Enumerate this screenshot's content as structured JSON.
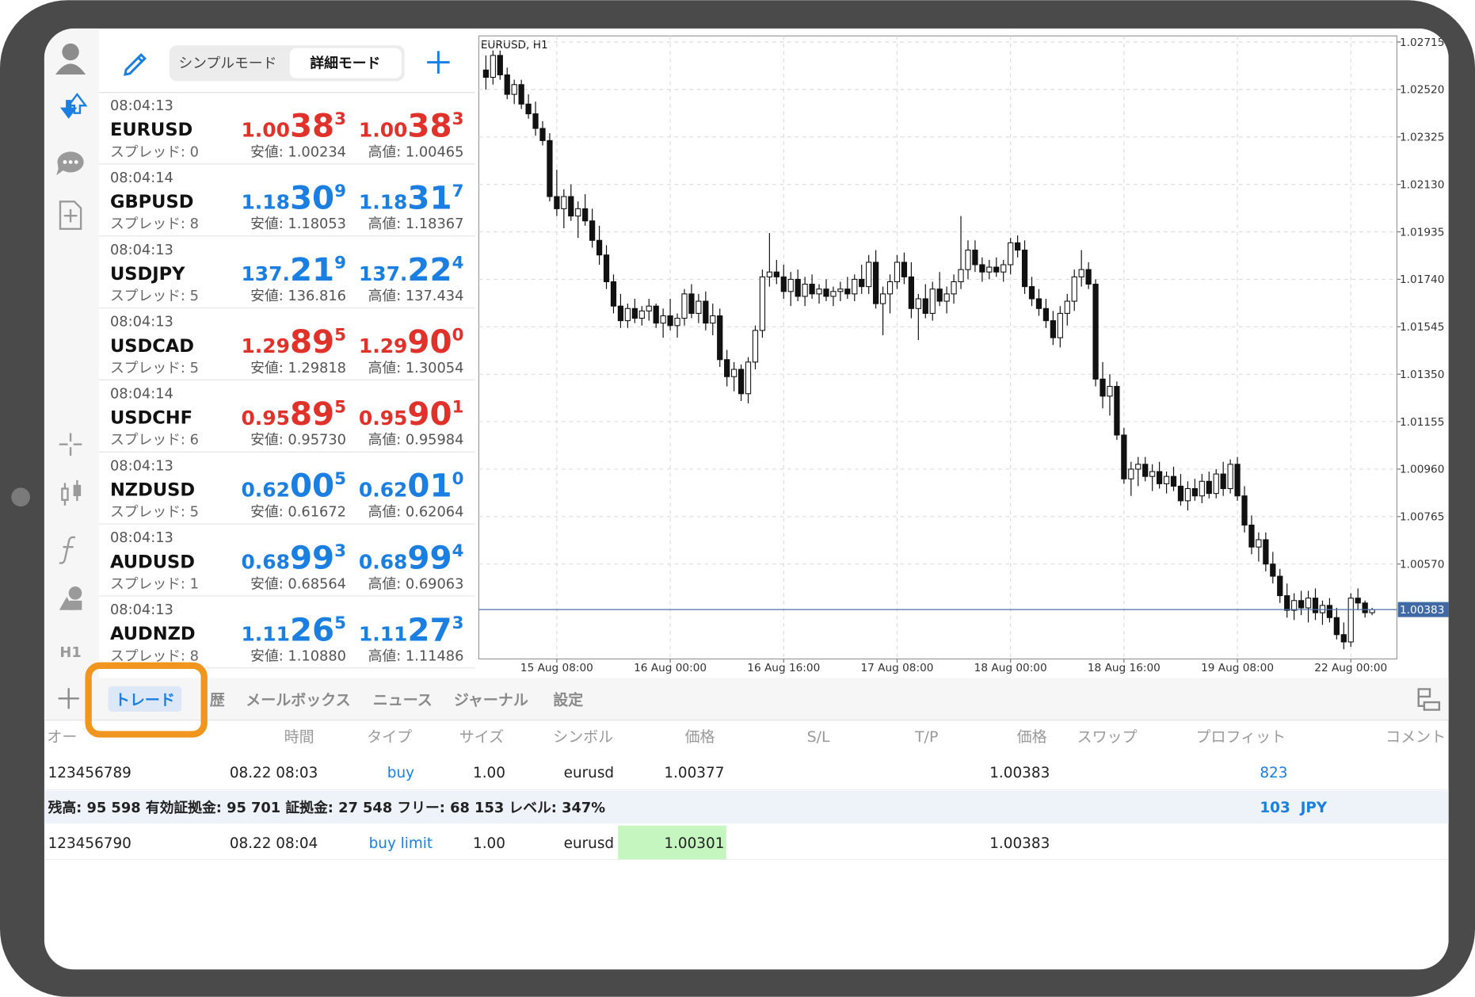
{
  "sidebar": {
    "timeframe": "H1"
  },
  "toolbar": {
    "modes": [
      "シンプルモード",
      "詳細モード"
    ]
  },
  "quotes": [
    {
      "time": "08:04:13",
      "symbol": "EURUSD",
      "spread": "スプレッド: 0",
      "bid": [
        "1.00",
        "38",
        "3"
      ],
      "ask": [
        "1.00",
        "38",
        "3"
      ],
      "low": "安値: 1.00234",
      "high": "高値: 1.00465",
      "color": "#e0322b"
    },
    {
      "time": "08:04:14",
      "symbol": "GBPUSD",
      "spread": "スプレッド: 8",
      "bid": [
        "1.18",
        "30",
        "9"
      ],
      "ask": [
        "1.18",
        "31",
        "7"
      ],
      "low": "安値: 1.18053",
      "high": "高値: 1.18367",
      "color": "#1a7fe0"
    },
    {
      "time": "08:04:13",
      "symbol": "USDJPY",
      "spread": "スプレッド: 5",
      "bid": [
        "137.",
        "21",
        "9"
      ],
      "ask": [
        "137.",
        "22",
        "4"
      ],
      "low": "安値: 136.816",
      "high": "高値: 137.434",
      "color": "#1a7fe0"
    },
    {
      "time": "08:04:13",
      "symbol": "USDCAD",
      "spread": "スプレッド: 5",
      "bid": [
        "1.29",
        "89",
        "5"
      ],
      "ask": [
        "1.29",
        "90",
        "0"
      ],
      "low": "安値: 1.29818",
      "high": "高値: 1.30054",
      "color": "#e0322b"
    },
    {
      "time": "08:04:14",
      "symbol": "USDCHF",
      "spread": "スプレッド: 6",
      "bid": [
        "0.95",
        "89",
        "5"
      ],
      "ask": [
        "0.95",
        "90",
        "1"
      ],
      "low": "安値: 0.95730",
      "high": "高値: 0.95984",
      "color": "#e0322b"
    },
    {
      "time": "08:04:13",
      "symbol": "NZDUSD",
      "spread": "スプレッド: 5",
      "bid": [
        "0.62",
        "00",
        "5"
      ],
      "ask": [
        "0.62",
        "01",
        "0"
      ],
      "low": "安値: 0.61672",
      "high": "高値: 0.62064",
      "color": "#1a7fe0"
    },
    {
      "time": "08:04:13",
      "symbol": "AUDUSD",
      "spread": "スプレッド: 1",
      "bid": [
        "0.68",
        "99",
        "3"
      ],
      "ask": [
        "0.68",
        "99",
        "4"
      ],
      "low": "安値: 0.68564",
      "high": "高値: 0.69063",
      "color": "#1a7fe0"
    },
    {
      "time": "08:04:13",
      "symbol": "AUDNZD",
      "spread": "スプレッド: 8",
      "bid": [
        "1.11",
        "26",
        "5"
      ],
      "ask": [
        "1.11",
        "27",
        "3"
      ],
      "low": "安値: 1.10880",
      "high": "高値: 1.11486",
      "color": "#1a7fe0"
    }
  ],
  "chart_data": {
    "type": "candlestick",
    "title": "EURUSD, H1",
    "xlim": [
      -1,
      128.5
    ],
    "ylim": [
      1.0018,
      1.0274
    ],
    "yticks": [
      1.02715,
      {
        "value": 1.0252,
        "label": "1.02520"
      },
      1.02325,
      {
        "value": 1.0213,
        "label": "1.02130"
      },
      1.01935,
      {
        "value": 1.0174,
        "label": "1.01740"
      },
      1.01545,
      {
        "value": 1.0135,
        "label": "1.01350"
      },
      1.01155,
      {
        "value": 1.0096,
        "label": "1.00960"
      },
      1.00765,
      {
        "value": 1.0057,
        "label": "1.00570"
      }
    ],
    "xticks": [
      {
        "value": 10,
        "label": "15 Aug 08:00"
      },
      {
        "value": 26,
        "label": "16 Aug 00:00"
      },
      {
        "value": 42,
        "label": "16 Aug 16:00"
      },
      {
        "value": 58,
        "label": "17 Aug 08:00"
      },
      {
        "value": 74,
        "label": "18 Aug 00:00"
      },
      {
        "value": 90,
        "label": "18 Aug 16:00"
      },
      {
        "value": 106,
        "label": "19 Aug 08:00"
      },
      {
        "value": 122,
        "label": "22 Aug 00:00"
      }
    ],
    "grid": true,
    "current_price": 1.00383,
    "ohlc": [
      [
        1.026,
        1.0266,
        1.0252,
        1.0257
      ],
      [
        1.0257,
        1.0268,
        1.0254,
        1.0266
      ],
      [
        1.0266,
        1.0268,
        1.0256,
        1.0258
      ],
      [
        1.0258,
        1.0261,
        1.0248,
        1.025
      ],
      [
        1.025,
        1.0256,
        1.0246,
        1.0254
      ],
      [
        1.0254,
        1.0256,
        1.0244,
        1.0246
      ],
      [
        1.0246,
        1.025,
        1.024,
        1.0242
      ],
      [
        1.0242,
        1.0247,
        1.0233,
        1.0236
      ],
      [
        1.0236,
        1.0239,
        1.0229,
        1.0231
      ],
      [
        1.0231,
        1.0234,
        1.0206,
        1.0208
      ],
      [
        1.0208,
        1.0219,
        1.02,
        1.0203
      ],
      [
        1.0203,
        1.0211,
        1.0195,
        1.0208
      ],
      [
        1.0208,
        1.0213,
        1.0198,
        1.02
      ],
      [
        1.02,
        1.0206,
        1.0191,
        1.0203
      ],
      [
        1.0203,
        1.0209,
        1.0196,
        1.0198
      ],
      [
        1.0198,
        1.0203,
        1.0187,
        1.019
      ],
      [
        1.019,
        1.0196,
        1.018,
        1.0184
      ],
      [
        1.0184,
        1.0188,
        1.017,
        1.0173
      ],
      [
        1.0173,
        1.0176,
        1.016,
        1.0163
      ],
      [
        1.0163,
        1.0168,
        1.0154,
        1.0157
      ],
      [
        1.0157,
        1.0164,
        1.0154,
        1.0162
      ],
      [
        1.0162,
        1.0166,
        1.0156,
        1.0158
      ],
      [
        1.0158,
        1.0163,
        1.0155,
        1.0161
      ],
      [
        1.0161,
        1.0166,
        1.0157,
        1.0163
      ],
      [
        1.0163,
        1.0164,
        1.0154,
        1.0156
      ],
      [
        1.0156,
        1.0162,
        1.015,
        1.0159
      ],
      [
        1.0159,
        1.0166,
        1.0153,
        1.0155
      ],
      [
        1.0155,
        1.016,
        1.015,
        1.0158
      ],
      [
        1.0158,
        1.017,
        1.0155,
        1.0168
      ],
      [
        1.0168,
        1.0172,
        1.0158,
        1.016
      ],
      [
        1.016,
        1.0168,
        1.0156,
        1.0165
      ],
      [
        1.0165,
        1.0169,
        1.0153,
        1.0156
      ],
      [
        1.0156,
        1.0164,
        1.0151,
        1.0159
      ],
      [
        1.0159,
        1.0162,
        1.0138,
        1.0141
      ],
      [
        1.0141,
        1.0145,
        1.013,
        1.0134
      ],
      [
        1.0134,
        1.014,
        1.0128,
        1.0137
      ],
      [
        1.0137,
        1.0139,
        1.0124,
        1.0127
      ],
      [
        1.0127,
        1.0142,
        1.0123,
        1.014
      ],
      [
        1.014,
        1.0155,
        1.0137,
        1.0153
      ],
      [
        1.0153,
        1.0178,
        1.015,
        1.0175
      ],
      [
        1.0175,
        1.0193,
        1.0171,
        1.0177
      ],
      [
        1.0177,
        1.0182,
        1.0172,
        1.0175
      ],
      [
        1.0175,
        1.018,
        1.0166,
        1.0169
      ],
      [
        1.0169,
        1.0177,
        1.0163,
        1.0174
      ],
      [
        1.0174,
        1.0178,
        1.0165,
        1.0167
      ],
      [
        1.0167,
        1.0175,
        1.0163,
        1.0172
      ],
      [
        1.0172,
        1.0176,
        1.0166,
        1.0168
      ],
      [
        1.0168,
        1.0172,
        1.0164,
        1.017
      ],
      [
        1.017,
        1.0174,
        1.0165,
        1.0167
      ],
      [
        1.0167,
        1.0171,
        1.0163,
        1.0169
      ],
      [
        1.0169,
        1.0173,
        1.0165,
        1.017
      ],
      [
        1.017,
        1.0175,
        1.0166,
        1.0168
      ],
      [
        1.0168,
        1.0176,
        1.0165,
        1.0174
      ],
      [
        1.0174,
        1.018,
        1.0168,
        1.0171
      ],
      [
        1.0171,
        1.0184,
        1.0168,
        1.0181
      ],
      [
        1.0181,
        1.0186,
        1.0162,
        1.0164
      ],
      [
        1.0164,
        1.0171,
        1.0151,
        1.0168
      ],
      [
        1.0168,
        1.0176,
        1.016,
        1.0173
      ],
      [
        1.0173,
        1.0184,
        1.017,
        1.0181
      ],
      [
        1.0181,
        1.0185,
        1.0172,
        1.0175
      ],
      [
        1.0175,
        1.0181,
        1.0158,
        1.0162
      ],
      [
        1.0162,
        1.0168,
        1.0149,
        1.0166
      ],
      [
        1.0166,
        1.0172,
        1.0158,
        1.016
      ],
      [
        1.016,
        1.0173,
        1.0157,
        1.017
      ],
      [
        1.017,
        1.0177,
        1.0163,
        1.0165
      ],
      [
        1.0165,
        1.0171,
        1.016,
        1.0168
      ],
      [
        1.0168,
        1.0176,
        1.0164,
        1.0173
      ],
      [
        1.0173,
        1.02,
        1.017,
        1.0178
      ],
      [
        1.0178,
        1.019,
        1.0174,
        1.0186
      ],
      [
        1.0186,
        1.019,
        1.0177,
        1.018
      ],
      [
        1.018,
        1.0183,
        1.0173,
        1.0177
      ],
      [
        1.0177,
        1.0182,
        1.0174,
        1.0179
      ],
      [
        1.0179,
        1.0183,
        1.0175,
        1.0177
      ],
      [
        1.0177,
        1.0182,
        1.0173,
        1.018
      ],
      [
        1.018,
        1.0191,
        1.0176,
        1.0189
      ],
      [
        1.0189,
        1.0192,
        1.0183,
        1.0186
      ],
      [
        1.0186,
        1.019,
        1.0168,
        1.0171
      ],
      [
        1.0171,
        1.0175,
        1.0163,
        1.0166
      ],
      [
        1.0166,
        1.017,
        1.0159,
        1.0162
      ],
      [
        1.0162,
        1.0166,
        1.0154,
        1.0157
      ],
      [
        1.0157,
        1.0161,
        1.0147,
        1.015
      ],
      [
        1.015,
        1.0163,
        1.0146,
        1.016
      ],
      [
        1.016,
        1.0168,
        1.0155,
        1.0165
      ],
      [
        1.0165,
        1.0178,
        1.0161,
        1.0175
      ],
      [
        1.0175,
        1.0186,
        1.0171,
        1.0178
      ],
      [
        1.0178,
        1.0181,
        1.017,
        1.0172
      ],
      [
        1.0172,
        1.0174,
        1.013,
        1.0133
      ],
      [
        1.0133,
        1.014,
        1.0121,
        1.0126
      ],
      [
        1.0126,
        1.0135,
        1.0118,
        1.013
      ],
      [
        1.013,
        1.0132,
        1.0108,
        1.011
      ],
      [
        1.011,
        1.0113,
        1.009,
        1.0092
      ],
      [
        1.0092,
        1.0099,
        1.0085,
        1.0096
      ],
      [
        1.0096,
        1.0101,
        1.0089,
        1.0098
      ],
      [
        1.0098,
        1.0101,
        1.0091,
        1.0093
      ],
      [
        1.0093,
        1.0098,
        1.0087,
        1.0095
      ],
      [
        1.0095,
        1.0099,
        1.0088,
        1.009
      ],
      [
        1.009,
        1.0095,
        1.0086,
        1.0093
      ],
      [
        1.0093,
        1.0097,
        1.0087,
        1.0089
      ],
      [
        1.0089,
        1.0094,
        1.0081,
        1.0083
      ],
      [
        1.0083,
        1.0091,
        1.0079,
        1.0088
      ],
      [
        1.0088,
        1.0092,
        1.0083,
        1.0085
      ],
      [
        1.0085,
        1.0094,
        1.0082,
        1.0091
      ],
      [
        1.0091,
        1.0095,
        1.0084,
        1.0086
      ],
      [
        1.0086,
        1.0096,
        1.0084,
        1.0094
      ],
      [
        1.0094,
        1.0099,
        1.0085,
        1.0088
      ],
      [
        1.0088,
        1.01,
        1.0086,
        1.0098
      ],
      [
        1.0098,
        1.0101,
        1.0083,
        1.0085
      ],
      [
        1.0085,
        1.0089,
        1.007,
        1.0073
      ],
      [
        1.0073,
        1.0077,
        1.0061,
        1.0064
      ],
      [
        1.0064,
        1.007,
        1.0058,
        1.0067
      ],
      [
        1.0067,
        1.007,
        1.0054,
        1.0057
      ],
      [
        1.0057,
        1.0062,
        1.0049,
        1.0052
      ],
      [
        1.0052,
        1.0055,
        1.0041,
        1.0044
      ],
      [
        1.0044,
        1.0049,
        1.0035,
        1.0038
      ],
      [
        1.0038,
        1.0045,
        1.0034,
        1.0042
      ],
      [
        1.0042,
        1.0046,
        1.0036,
        1.0039
      ],
      [
        1.0039,
        1.0046,
        1.0033,
        1.0043
      ],
      [
        1.0043,
        1.0047,
        1.0034,
        1.0037
      ],
      [
        1.0037,
        1.0042,
        1.0032,
        1.004
      ],
      [
        1.004,
        1.0043,
        1.0033,
        1.0035
      ],
      [
        1.0035,
        1.0039,
        1.0026,
        1.0028
      ],
      [
        1.0028,
        1.0033,
        1.0022,
        1.0025
      ],
      [
        1.0025,
        1.0045,
        1.0023,
        1.0043
      ],
      [
        1.0043,
        1.0047,
        1.0038,
        1.0041
      ],
      [
        1.0041,
        1.0042,
        1.0035,
        1.0037
      ],
      [
        1.0037,
        1.0039,
        1.0036,
        1.00383
      ]
    ]
  },
  "tabs": [
    "トレード",
    "歴",
    "メールボックス",
    "ニュース",
    "ジャーナル",
    "設定"
  ],
  "trade_table": {
    "headers": [
      "オー",
      "時間",
      "タイプ",
      "サイズ",
      "シンボル",
      "価格",
      "S/L",
      "T/P",
      "価格",
      "スワップ",
      "プロフィット",
      "コメント"
    ],
    "rows": [
      {
        "order": "123456789",
        "time": "08.22 08:03",
        "type": "buy",
        "size": "1.00",
        "symbol": "eurusd",
        "price": "1.00377",
        "current_price": "1.00383",
        "profit": "823"
      },
      {
        "order": "123456790",
        "time": "08.22 08:04",
        "type": "buy limit",
        "size": "1.00",
        "symbol": "eurusd",
        "price": "1.00301",
        "current_price": "1.00383"
      }
    ],
    "balance": "残高: 95 598 有効証拠金: 95 701 証拠金: 27 548 フリー: 68 153 レベル: 347%",
    "total_profit": "103  JPY"
  }
}
